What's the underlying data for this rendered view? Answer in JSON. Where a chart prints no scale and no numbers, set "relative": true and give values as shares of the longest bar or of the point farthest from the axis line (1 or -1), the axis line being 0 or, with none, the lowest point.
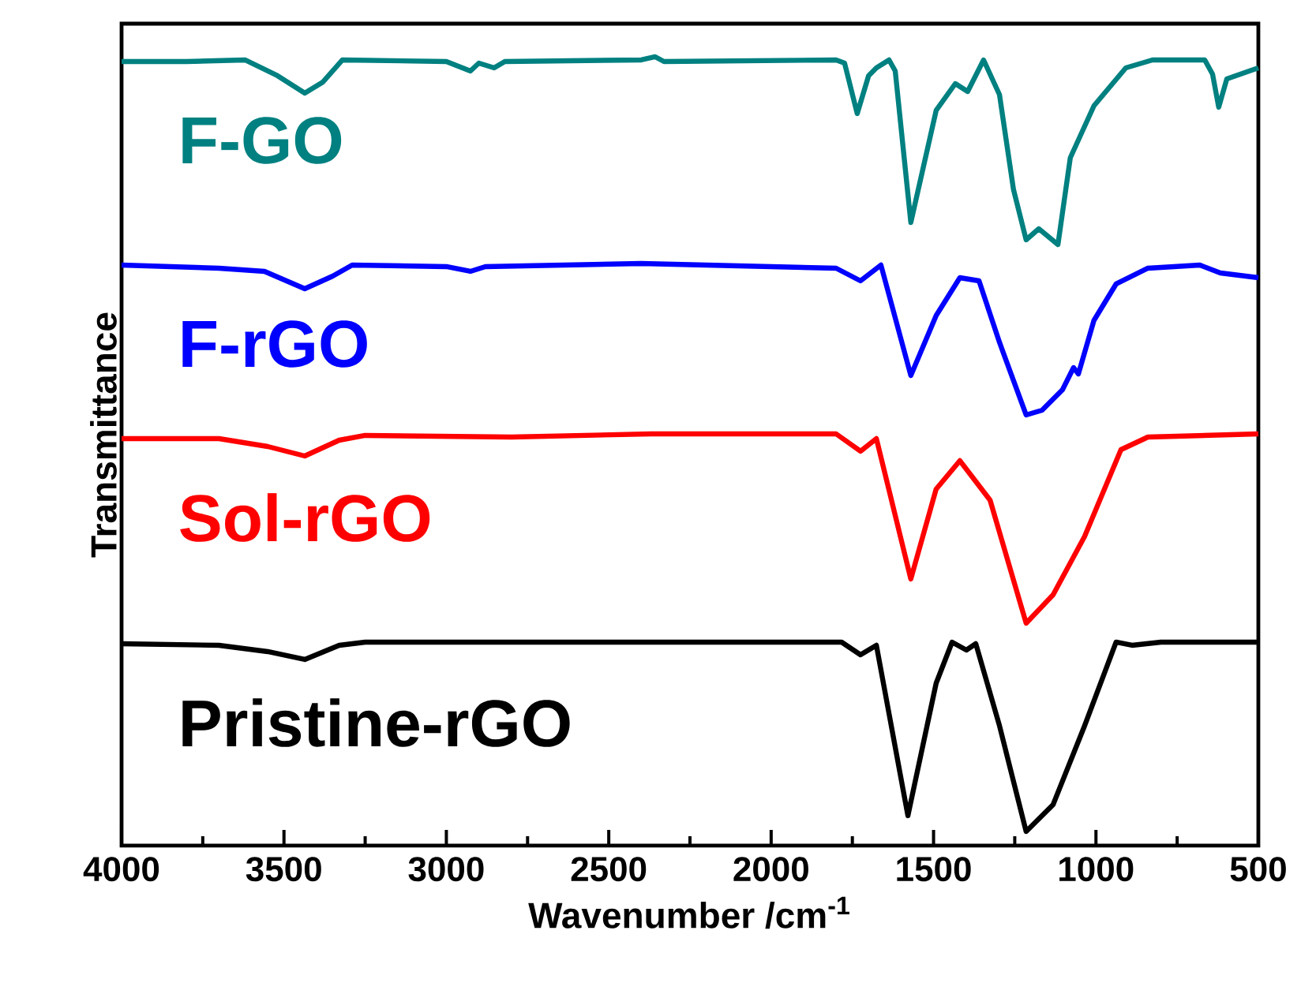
{
  "chart_data": {
    "type": "line",
    "relative": true,
    "xlabel": "Wavenumber /cm$^{-1}$",
    "ylabel": "Transmittance",
    "xlim": [
      4000,
      500
    ],
    "xticks": [
      4000,
      3500,
      3000,
      2500,
      2000,
      1500,
      1000,
      500
    ],
    "legend": false,
    "marker": "none",
    "line_style": "solid",
    "series": [
      {
        "name": "F-GO",
        "color": "#008080",
        "x": [
          4000,
          3800,
          3620,
          3520,
          3436,
          3380,
          3320,
          3000,
          2926,
          2900,
          2853,
          2820,
          2400,
          2357,
          2330,
          1800,
          1774,
          1735,
          1700,
          1676,
          1637,
          1618,
          1570,
          1492,
          1433,
          1395,
          1346,
          1297,
          1254,
          1215,
          1176,
          1117,
          1079,
          1006,
          908,
          826,
          665,
          641,
          622,
          597,
          500
        ],
        "values": [
          0.994,
          0.994,
          0.996,
          0.976,
          0.954,
          0.968,
          0.996,
          0.994,
          0.982,
          0.992,
          0.986,
          0.994,
          0.996,
          1.0,
          0.994,
          0.996,
          0.992,
          0.928,
          0.976,
          0.986,
          0.996,
          0.982,
          0.79,
          0.932,
          0.966,
          0.956,
          0.996,
          0.952,
          0.832,
          0.768,
          0.782,
          0.762,
          0.872,
          0.938,
          0.986,
          0.996,
          0.996,
          0.978,
          0.936,
          0.972,
          0.986
        ]
      },
      {
        "name": "F-rGO",
        "color": "#0000ff",
        "x": [
          4000,
          3700,
          3560,
          3436,
          3350,
          3290,
          3000,
          2926,
          2880,
          2400,
          1800,
          1725,
          1662,
          1570,
          1492,
          1419,
          1360,
          1297,
          1215,
          1166,
          1103,
          1069,
          1054,
          1006,
          938,
          840,
          680,
          617,
          500
        ],
        "values": [
          0.736,
          0.732,
          0.728,
          0.706,
          0.722,
          0.736,
          0.734,
          0.728,
          0.734,
          0.738,
          0.732,
          0.716,
          0.736,
          0.596,
          0.672,
          0.72,
          0.716,
          0.638,
          0.546,
          0.552,
          0.578,
          0.606,
          0.598,
          0.666,
          0.712,
          0.732,
          0.736,
          0.726,
          0.72
        ]
      },
      {
        "name": "Sol-rGO",
        "color": "#ff0000",
        "x": [
          4000,
          3700,
          3550,
          3436,
          3330,
          3250,
          2800,
          2370,
          1800,
          1725,
          1676,
          1570,
          1492,
          1419,
          1326,
          1215,
          1132,
          1035,
          923,
          840,
          500
        ],
        "values": [
          0.516,
          0.516,
          0.506,
          0.494,
          0.514,
          0.52,
          0.518,
          0.522,
          0.522,
          0.5,
          0.516,
          0.338,
          0.452,
          0.488,
          0.438,
          0.282,
          0.318,
          0.392,
          0.502,
          0.518,
          0.522
        ]
      },
      {
        "name": "Pristine-rGO",
        "color": "#000000",
        "x": [
          4000,
          3700,
          3550,
          3436,
          3330,
          3250,
          2500,
          1783,
          1725,
          1676,
          1579,
          1492,
          1443,
          1399,
          1370,
          1297,
          1215,
          1132,
          1035,
          938,
          889,
          800,
          500
        ],
        "values": [
          0.256,
          0.254,
          0.246,
          0.236,
          0.254,
          0.258,
          0.258,
          0.258,
          0.242,
          0.254,
          0.038,
          0.206,
          0.258,
          0.248,
          0.256,
          0.152,
          0.018,
          0.052,
          0.152,
          0.258,
          0.254,
          0.258,
          0.258
        ]
      }
    ]
  }
}
